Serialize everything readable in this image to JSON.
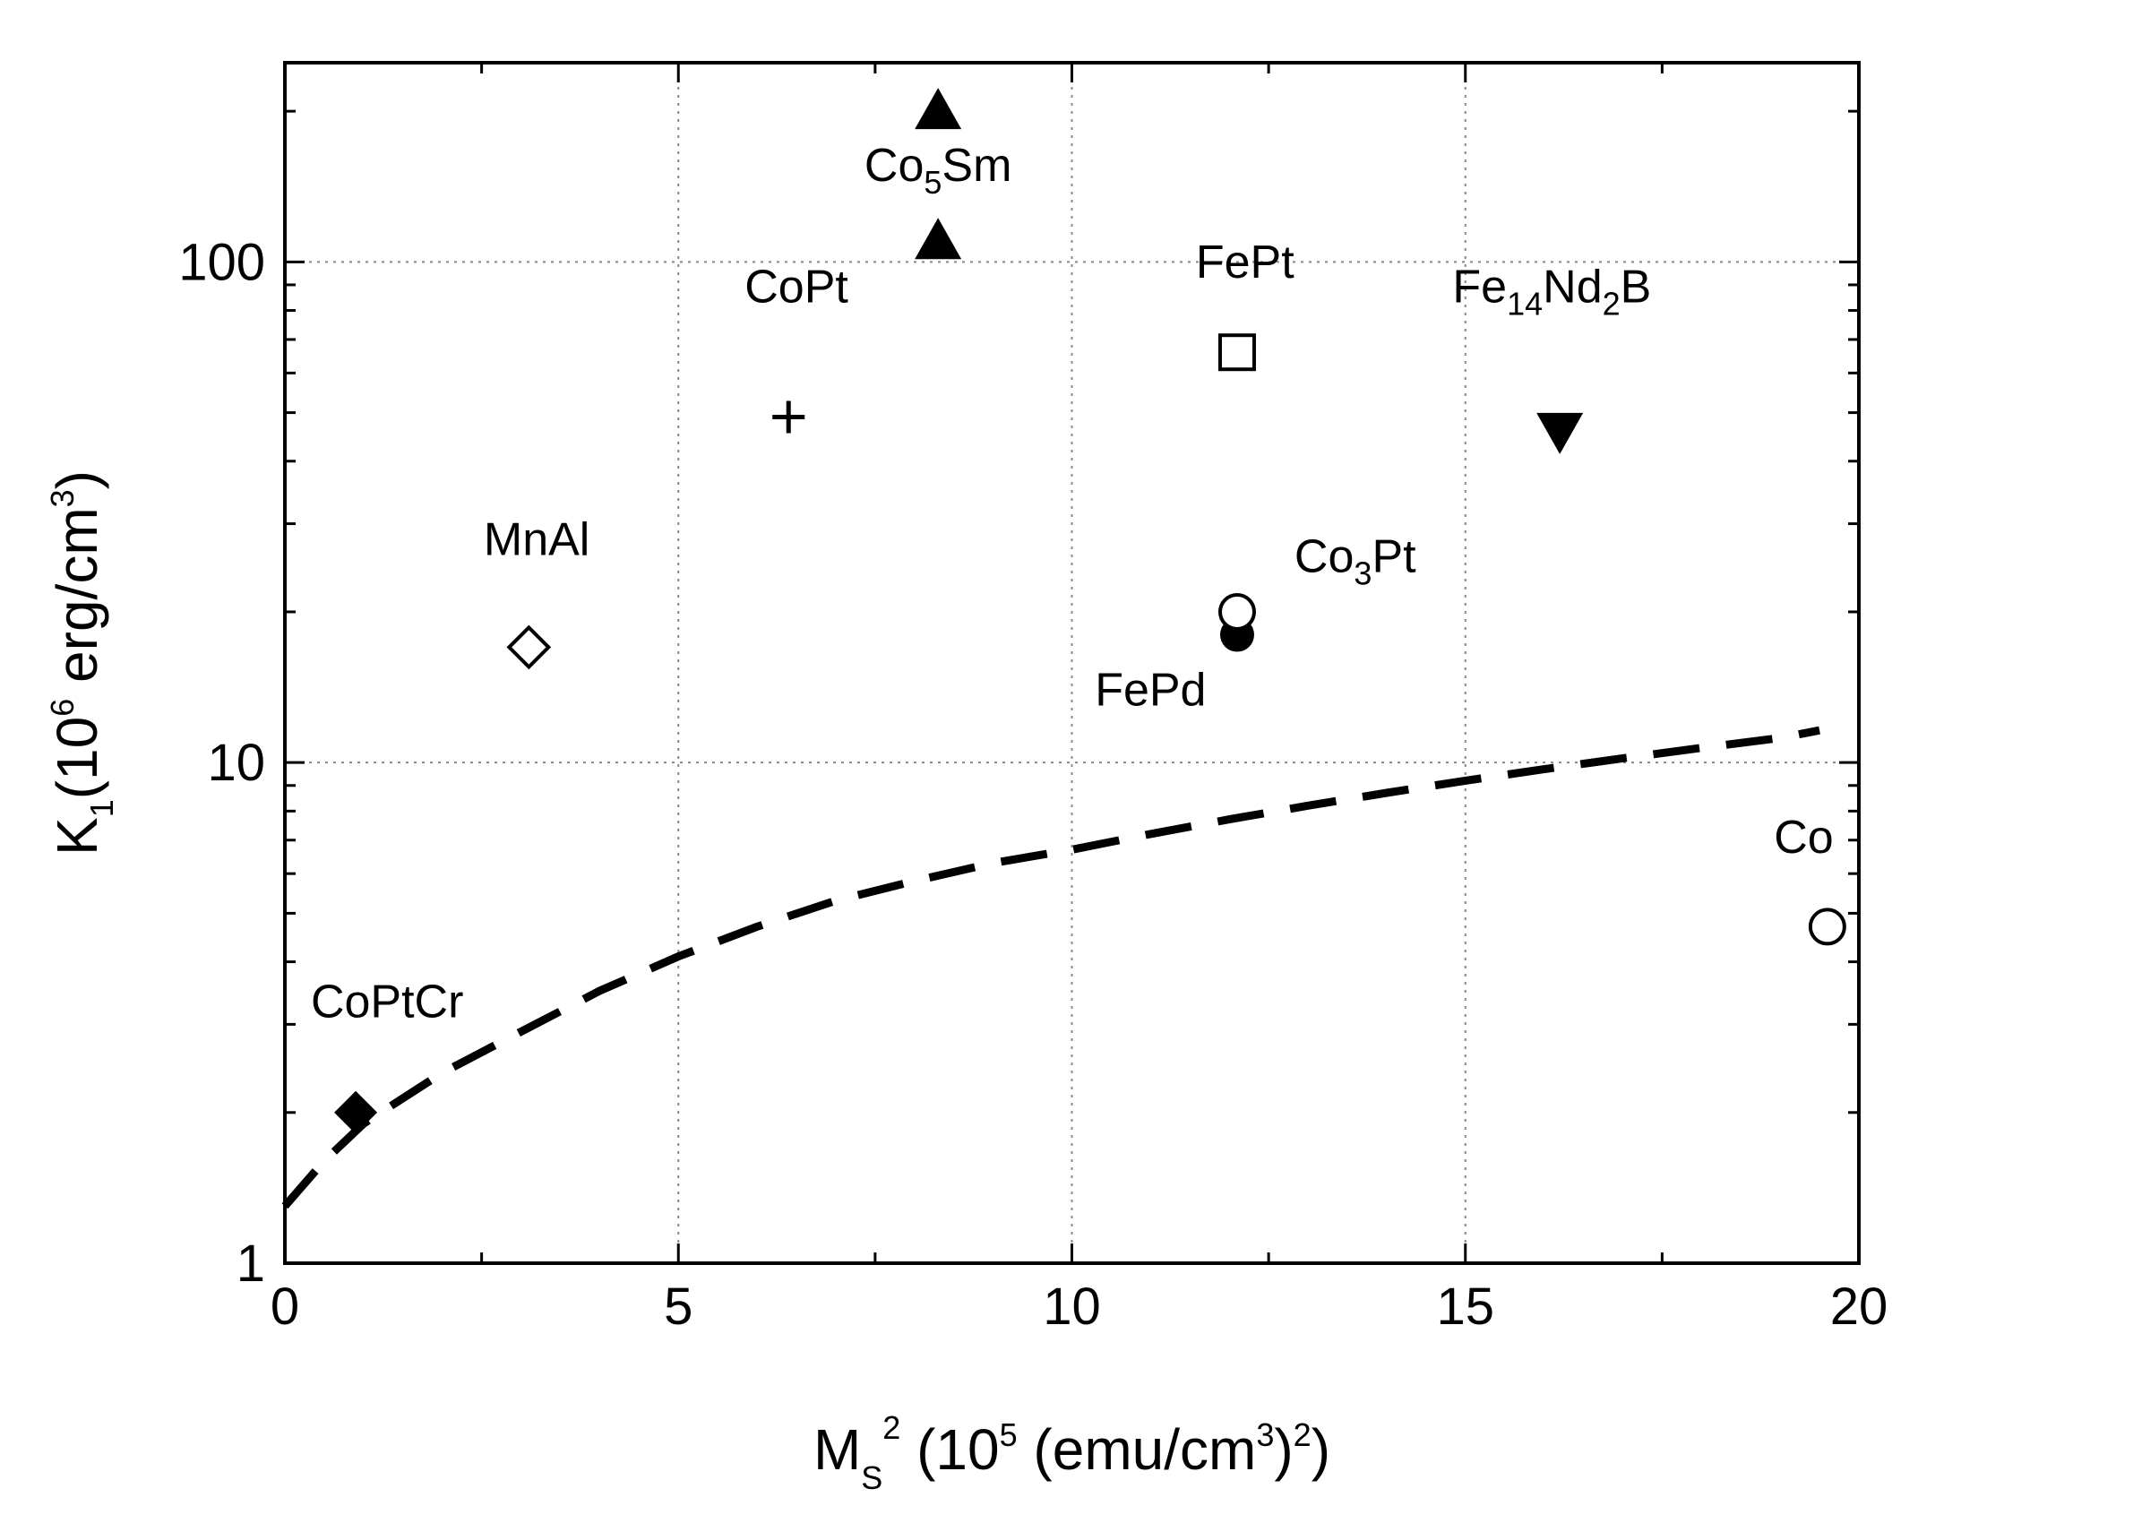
{
  "chart_data": {
    "type": "scatter",
    "title": "",
    "xlabel": {
      "main": "M",
      "sub": "S",
      "sup": "2",
      "rest1": " (10",
      "sup2": "5",
      "rest2": " (emu/cm",
      "sup3": "3",
      "rest3": ")",
      "sup4": "2",
      "rest4": ")"
    },
    "ylabel": {
      "main": "K",
      "sub": "1",
      "rest1": "(10",
      "sup": "6",
      "rest2": " erg/cm",
      "sup2": "3",
      "rest3": ")"
    },
    "xlim": [
      0,
      20
    ],
    "ylim": [
      1,
      250
    ],
    "yscale": "log",
    "x_ticks": [
      0,
      5,
      10,
      15,
      20
    ],
    "x_tick_labels": [
      "0",
      "5",
      "10",
      "15",
      "20"
    ],
    "y_ticks": [
      1,
      10,
      100
    ],
    "y_tick_labels": [
      "1",
      "10",
      "100"
    ],
    "grid": true,
    "points": [
      {
        "name": "Co5Sm (upper)",
        "x": 8.3,
        "y": 200,
        "marker": "triangle-up-filled"
      },
      {
        "name": "Co5Sm (lower)",
        "x": 8.3,
        "y": 110,
        "marker": "triangle-up-filled"
      },
      {
        "name": "CoPt",
        "x": 6.4,
        "y": 49,
        "marker": "plus"
      },
      {
        "name": "FePt",
        "x": 12.1,
        "y": 66,
        "marker": "square-open"
      },
      {
        "name": "Fe14Nd2B",
        "x": 16.2,
        "y": 46,
        "marker": "triangle-down-filled"
      },
      {
        "name": "MnAl",
        "x": 3.1,
        "y": 17,
        "marker": "diamond-open"
      },
      {
        "name": "Co3Pt",
        "x": 12.1,
        "y": 20,
        "marker": "circle-open"
      },
      {
        "name": "FePd",
        "x": 12.1,
        "y": 18,
        "marker": "circle-filled"
      },
      {
        "name": "Co",
        "x": 19.6,
        "y": 4.7,
        "marker": "circle-open"
      },
      {
        "name": "CoPtCr",
        "x": 0.9,
        "y": 2.0,
        "marker": "diamond-filled"
      }
    ],
    "labels": [
      {
        "text": "Co",
        "sub": "5",
        "tail": "Sm",
        "x": 8.3,
        "y": 145
      },
      {
        "text": "CoPt",
        "sub": "",
        "tail": "",
        "x": 6.5,
        "y": 83
      },
      {
        "text": "FePt",
        "sub": "",
        "tail": "",
        "x": 12.2,
        "y": 93
      },
      {
        "text": "Fe",
        "sub": "14",
        "tail": "Nd",
        "sub2": "2",
        "tail2": "B",
        "x": 16.1,
        "y": 83
      },
      {
        "text": "MnAl",
        "sub": "",
        "tail": "",
        "x": 3.2,
        "y": 26
      },
      {
        "text": "Co",
        "sub": "3",
        "tail": "Pt",
        "x": 13.6,
        "y": 24
      },
      {
        "text": "FePd",
        "sub": "",
        "tail": "",
        "x": 11.0,
        "y": 13
      },
      {
        "text": "Co",
        "sub": "",
        "tail": "",
        "x": 19.3,
        "y": 6.6
      },
      {
        "text": "CoPtCr",
        "sub": "",
        "tail": "",
        "x": 1.3,
        "y": 3.1
      }
    ],
    "model_curve": {
      "name": "dashed-boundary-curve",
      "style": "dashed",
      "x": [
        0,
        0.5,
        1,
        2,
        3,
        4,
        5,
        6,
        7,
        8,
        9,
        10,
        11,
        12,
        13,
        14,
        15,
        16,
        17,
        18,
        19,
        19.5
      ],
      "y": [
        1.3,
        1.6,
        1.9,
        2.4,
        2.9,
        3.5,
        4.1,
        4.7,
        5.3,
        5.8,
        6.3,
        6.7,
        7.2,
        7.7,
        8.2,
        8.7,
        9.2,
        9.7,
        10.2,
        10.7,
        11.2,
        11.6
      ]
    }
  }
}
